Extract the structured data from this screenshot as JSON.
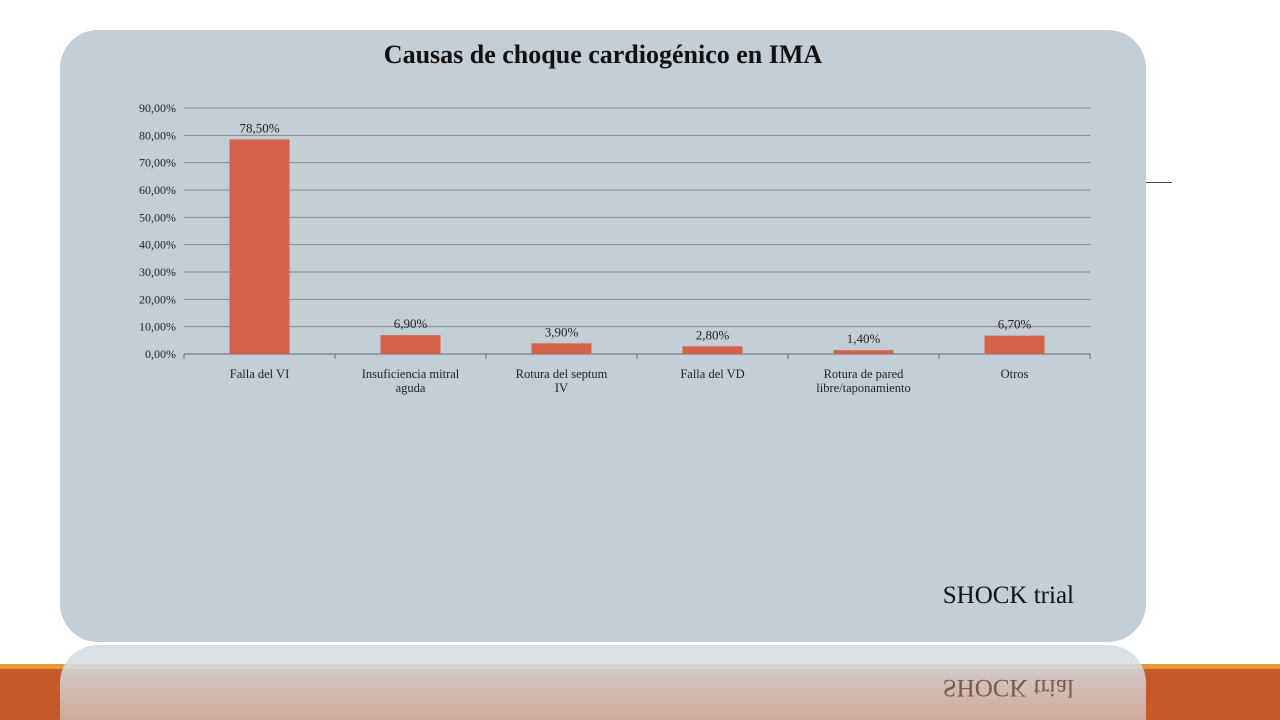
{
  "slide": {
    "source": "SHOCK trial",
    "colors": {
      "card_background": "#c3ced6",
      "bar": "#d4624a",
      "footer": "#c55a28",
      "footer_accent": "#e39a35"
    }
  },
  "chart_data": {
    "type": "bar",
    "title": "Causas de choque cardiogénico en IMA",
    "xlabel": "",
    "ylabel": "",
    "categories": [
      [
        "Falla del VI"
      ],
      [
        "Insuficiencia mitral",
        "aguda"
      ],
      [
        "Rotura del septum",
        "IV"
      ],
      [
        "Falla del VD"
      ],
      [
        "Rotura de pared",
        "libre/taponamiento"
      ],
      [
        "Otros"
      ]
    ],
    "values": [
      78.5,
      6.9,
      3.9,
      2.8,
      1.4,
      6.7
    ],
    "value_labels": [
      "78,50%",
      "6,90%",
      "3,90%",
      "2,80%",
      "1,40%",
      "6,70%"
    ],
    "ylim": [
      0,
      90
    ],
    "yticks": [
      0,
      10,
      20,
      30,
      40,
      50,
      60,
      70,
      80,
      90
    ],
    "ytick_labels": [
      "0,00%",
      "10,00%",
      "20,00%",
      "30,00%",
      "40,00%",
      "50,00%",
      "60,00%",
      "70,00%",
      "80,00%",
      "90,00%"
    ],
    "grid": true,
    "legend": "none"
  }
}
